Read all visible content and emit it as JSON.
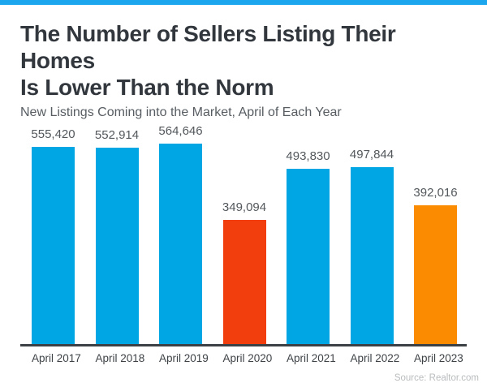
{
  "header": {
    "title_line1": "The Number of Sellers Listing Their Homes",
    "title_line2": "Is Lower Than the Norm",
    "subtitle": "New Listings Coming into the Market, April of Each Year"
  },
  "chart_data": {
    "type": "bar",
    "title": "The Number of Sellers Listing Their Homes Is Lower Than the Norm",
    "subtitle": "New Listings Coming into the Market, April of Each Year",
    "categories": [
      "April 2017",
      "April 2018",
      "April 2019",
      "April 2020",
      "April 2021",
      "April 2022",
      "April 2023"
    ],
    "values": [
      555420,
      552914,
      564646,
      349094,
      493830,
      497844,
      392016
    ],
    "value_labels": [
      "555,420",
      "552,914",
      "564,646",
      "349,094",
      "493,830",
      "497,844",
      "392,016"
    ],
    "bar_colors": [
      "#00a6e4",
      "#00a6e4",
      "#00a6e4",
      "#f23d0d",
      "#00a6e4",
      "#00a6e4",
      "#fb8b00"
    ],
    "ylim": [
      0,
      564646
    ],
    "grid": false,
    "legend": null,
    "xlabel": "",
    "ylabel": ""
  },
  "footer": {
    "source": "Source: Realtor.com"
  },
  "colors": {
    "accent_strip": "#1ca6ee",
    "bar_blue": "#00a6e4",
    "bar_red": "#f23d0d",
    "bar_orange": "#fb8b00",
    "axis_line": "#3c4145",
    "title_text": "#31373d",
    "subtitle_text": "#575d62",
    "source_text": "#b9bcbe"
  }
}
